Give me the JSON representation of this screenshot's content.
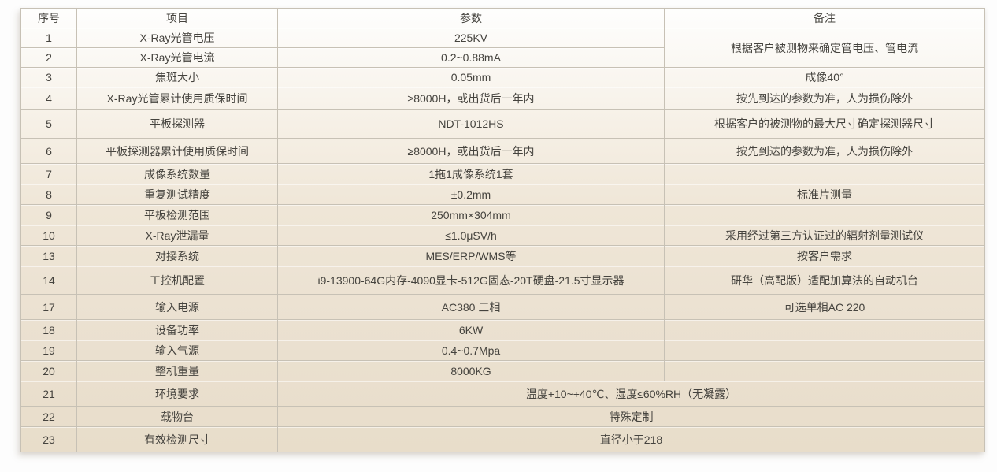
{
  "table": {
    "headers": [
      "序号",
      "项目",
      "参数",
      "备注"
    ],
    "rows": [
      {
        "no": "1",
        "item": "X-Ray光管电压",
        "param": "225KV",
        "remark": "根据客户被测物来确定管电压、管电流",
        "remark_rowspan": 2
      },
      {
        "no": "2",
        "item": "X-Ray光管电流",
        "param": "0.2~0.88mA",
        "remark": null
      },
      {
        "no": "3",
        "item": "焦斑大小",
        "param": "0.05mm",
        "remark": "成像40°"
      },
      {
        "no": "4",
        "item": "X-Ray光管累计使用质保时间",
        "param": "≥8000H，或出货后一年内",
        "remark": "按先到达的参数为准，人为损伤除外"
      },
      {
        "no": "5",
        "item": "平板探测器",
        "param": "NDT-1012HS",
        "remark": "根据客户的被测物的最大尺寸确定探测器尺寸"
      },
      {
        "no": "6",
        "item": "平板探测器累计使用质保时间",
        "param": "≥8000H，或出货后一年内",
        "remark": "按先到达的参数为准，人为损伤除外"
      },
      {
        "no": "7",
        "item": "成像系统数量",
        "param": "1拖1成像系统1套",
        "remark": ""
      },
      {
        "no": "8",
        "item": "重复测试精度",
        "param": "±0.2mm",
        "remark": "标准片测量"
      },
      {
        "no": "9",
        "item": "平板检测范围",
        "param": "250mm×304mm",
        "remark": ""
      },
      {
        "no": "10",
        "item": "X-Ray泄漏量",
        "param": "≤1.0μSV/h",
        "remark": "采用经过第三方认证过的辐射剂量测试仪"
      },
      {
        "no": "13",
        "item": "对接系统",
        "param": "MES/ERP/WMS等",
        "remark": "按客户需求"
      },
      {
        "no": "14",
        "item": "工控机配置",
        "param": "i9-13900-64G内存-4090显卡-512G固态-20T硬盘-21.5寸显示器",
        "remark": "研华（高配版）适配加算法的自动机台"
      },
      {
        "no": "17",
        "item": "输入电源",
        "param": "AC380 三相",
        "remark": "可选单相AC 220"
      },
      {
        "no": "18",
        "item": "设备功率",
        "param": "6KW",
        "remark": ""
      },
      {
        "no": "19",
        "item": "输入气源",
        "param": "0.4~0.7Mpa",
        "remark": ""
      },
      {
        "no": "20",
        "item": "整机重量",
        "param": "8000KG",
        "remark": ""
      },
      {
        "no": "21",
        "item": "环境要求",
        "param": "温度+10~+40℃、湿度≤60%RH（无凝露）",
        "param_colspan": 2
      },
      {
        "no": "22",
        "item": "载物台",
        "param": "特殊定制",
        "param_colspan": 2
      },
      {
        "no": "23",
        "item": "有效检测尺寸",
        "param": "直径小于218",
        "param_colspan": 2
      }
    ]
  }
}
